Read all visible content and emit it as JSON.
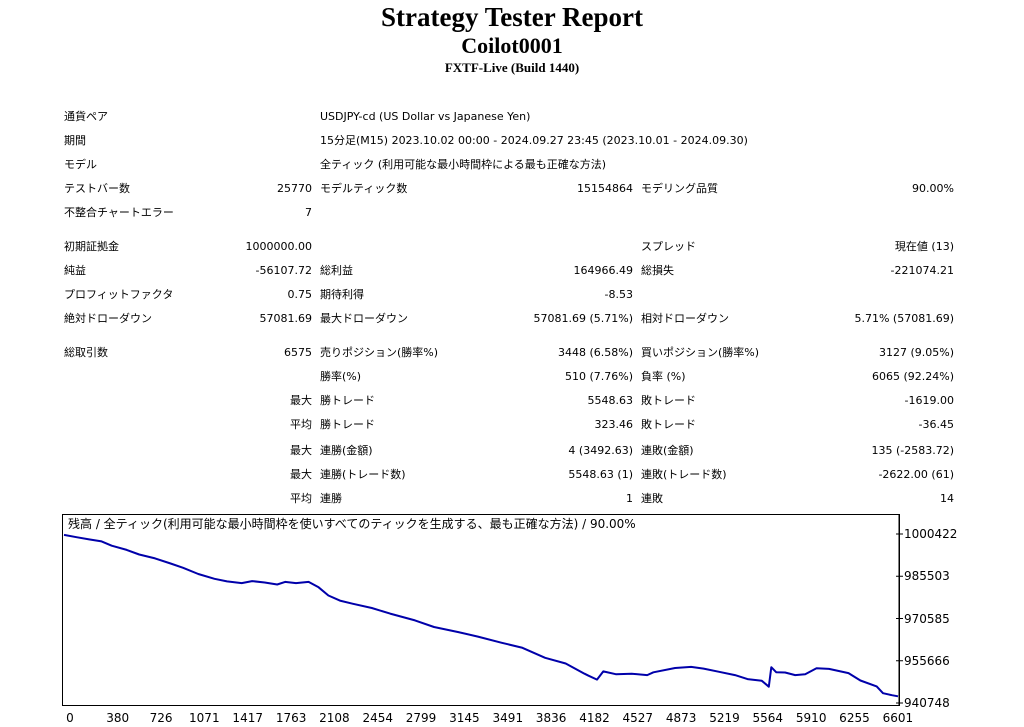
{
  "header": {
    "title": "Strategy Tester Report",
    "ea_name": "Coilot0001",
    "server": "FXTF-Live (Build 1440)"
  },
  "settings": {
    "symbol_label": "通貨ペア",
    "symbol_value": "USDJPY-cd (US Dollar vs Japanese Yen)",
    "period_label": "期間",
    "period_value": "15分足(M15) 2023.10.02 00:00 - 2024.09.27 23:45 (2023.10.01 - 2024.09.30)",
    "model_label": "モデル",
    "model_value": "全ティック (利用可能な最小時間枠による最も正確な方法)",
    "bars_label": "テストバー数",
    "bars_value": "25770",
    "ticks_label": "モデルティック数",
    "ticks_value": "15154864",
    "quality_label": "モデリング品質",
    "quality_value": "90.00%",
    "errors_label": "不整合チャートエラー",
    "errors_value": "7"
  },
  "results": {
    "deposit_label": "初期証拠金",
    "deposit_value": "1000000.00",
    "spread_label": "スプレッド",
    "spread_value": "現在値 (13)",
    "net_label": "純益",
    "net_value": "-56107.72",
    "gross_profit_label": "総利益",
    "gross_profit_value": "164966.49",
    "gross_loss_label": "総損失",
    "gross_loss_value": "-221074.21",
    "pf_label": "プロフィットファクタ",
    "pf_value": "0.75",
    "expected_label": "期待利得",
    "expected_value": "-8.53",
    "abs_dd_label": "絶対ドローダウン",
    "abs_dd_value": "57081.69",
    "max_dd_label": "最大ドローダウン",
    "max_dd_value": "57081.69 (5.71%)",
    "rel_dd_label": "相対ドローダウン",
    "rel_dd_value": "5.71% (57081.69)",
    "trades_label": "総取引数",
    "trades_value": "6575",
    "short_label": "売りポジション(勝率%)",
    "short_value": "3448 (6.58%)",
    "long_label": "買いポジション(勝率%)",
    "long_value": "3127 (9.05%)",
    "winrate_label": "勝率(%)",
    "winrate_value": "510 (7.76%)",
    "lossrate_label": "負率 (%)",
    "lossrate_value": "6065 (92.24%)",
    "max_label": "最大",
    "avg_label": "平均",
    "largest_win_label": "勝トレード",
    "largest_win_value": "5548.63",
    "largest_loss_label": "敗トレード",
    "largest_loss_value": "-1619.00",
    "avg_win_label": "勝トレード",
    "avg_win_value": "323.46",
    "avg_loss_label": "敗トレード",
    "avg_loss_value": "-36.45",
    "consec_wins_amt_label": "連勝(金額)",
    "consec_wins_amt_value": "4 (3492.63)",
    "consec_losses_amt_label": "連敗(金額)",
    "consec_losses_amt_value": "135 (-2583.72)",
    "consec_wins_cnt_label": "連勝(トレード数)",
    "consec_wins_cnt_value": "5548.63 (1)",
    "consec_losses_cnt_label": "連敗(トレード数)",
    "consec_losses_cnt_value": "-2622.00 (61)",
    "avg_consec_wins_label": "連勝",
    "avg_consec_wins_value": "1",
    "avg_consec_losses_label": "連敗",
    "avg_consec_losses_value": "14"
  },
  "chart_data": {
    "type": "line",
    "title": "残高 / 全ティック(利用可能な最小時間枠を使いすべてのティックを生成する、最も正確な方法) / 90.00%",
    "line_color": "#0000aa",
    "x_ticks": [
      "0",
      "380",
      "726",
      "1071",
      "1417",
      "1763",
      "2108",
      "2454",
      "2799",
      "3145",
      "3491",
      "3836",
      "4182",
      "4527",
      "4873",
      "5219",
      "5564",
      "5910",
      "6255",
      "6601"
    ],
    "y_ticks": [
      "1000422",
      "985503",
      "970585",
      "955666",
      "940748"
    ],
    "xlim": [
      0,
      6650
    ],
    "ylim": [
      940748,
      1000422
    ],
    "series": [
      {
        "x": [
          0,
          100,
          200,
          300,
          380,
          500,
          600,
          726,
          850,
          950,
          1071,
          1200,
          1300,
          1417,
          1500,
          1600,
          1700,
          1763,
          1850,
          1950,
          2030,
          2108,
          2200,
          2300,
          2454,
          2600,
          2799,
          2950,
          3145,
          3300,
          3491,
          3650,
          3836,
          4000,
          4150,
          4182,
          4250,
          4300,
          4400,
          4527,
          4650,
          4700,
          4873,
          5000,
          5100,
          5219,
          5350,
          5450,
          5564,
          5620,
          5640,
          5680,
          5750,
          5830,
          5910,
          6000,
          6100,
          6255,
          6350,
          6480,
          6530,
          6601,
          6650
        ],
        "y": [
          1000100,
          999300,
          998500,
          997800,
          996300,
          994800,
          993200,
          991800,
          990000,
          988500,
          986300,
          984600,
          983700,
          983100,
          983800,
          983300,
          982600,
          983500,
          983100,
          983500,
          981600,
          978700,
          976900,
          975800,
          974300,
          972300,
          969900,
          967600,
          965800,
          964200,
          962000,
          960300,
          956700,
          954700,
          951100,
          950400,
          949000,
          951900,
          950900,
          951100,
          950600,
          951600,
          953100,
          953500,
          952900,
          951800,
          950600,
          949200,
          948600,
          946500,
          953400,
          951600,
          951500,
          950600,
          950900,
          953000,
          952800,
          951300,
          948700,
          946600,
          944200,
          943500,
          943100
        ]
      }
    ]
  }
}
